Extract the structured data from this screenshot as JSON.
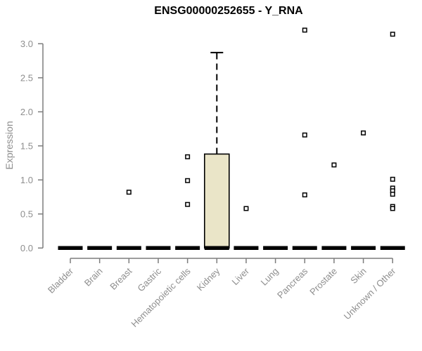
{
  "page": {
    "background": "#ffffff"
  },
  "style": {
    "box_fill": "#eae5c8",
    "box_stroke": "#000000",
    "median_color": "#000000",
    "axis_color": "#7d7d7d",
    "tick_label_color": "#8e8e8e",
    "title_color": "#000000",
    "outlier_marker": "open-square"
  },
  "chart_data": {
    "type": "boxplot",
    "title": "ENSG00000252655 - Y_RNA",
    "xlabel": "",
    "ylabel": "Expression",
    "ylim": [
      0,
      3.25
    ],
    "yticks": [
      0,
      0.5,
      1,
      1.5,
      2,
      2.5,
      3
    ],
    "grid": false,
    "legend": false,
    "categories": [
      "Bladder",
      "Brain",
      "Breast",
      "Gastric",
      "Hematopoietic cells",
      "Kidney",
      "Liver",
      "Lung",
      "Pancreas",
      "Prostate",
      "Skin",
      "Unknown / Other"
    ],
    "series": [
      {
        "category": "Bladder",
        "low": 0,
        "q1": 0,
        "median": 0,
        "q3": 0,
        "high": 0,
        "outliers": []
      },
      {
        "category": "Brain",
        "low": 0,
        "q1": 0,
        "median": 0,
        "q3": 0,
        "high": 0,
        "outliers": []
      },
      {
        "category": "Breast",
        "low": 0,
        "q1": 0,
        "median": 0,
        "q3": 0,
        "high": 0,
        "outliers": [
          0.82
        ]
      },
      {
        "category": "Gastric",
        "low": 0,
        "q1": 0,
        "median": 0,
        "q3": 0,
        "high": 0,
        "outliers": []
      },
      {
        "category": "Hematopoietic cells",
        "low": 0,
        "q1": 0,
        "median": 0,
        "q3": 0,
        "high": 0,
        "outliers": [
          1.34,
          0.99,
          0.64
        ]
      },
      {
        "category": "Kidney",
        "low": 0,
        "q1": 0,
        "median": 0,
        "q3": 1.38,
        "high": 2.87,
        "outliers": []
      },
      {
        "category": "Liver",
        "low": 0,
        "q1": 0,
        "median": 0,
        "q3": 0,
        "high": 0,
        "outliers": [
          0.58
        ]
      },
      {
        "category": "Lung",
        "low": 0,
        "q1": 0,
        "median": 0,
        "q3": 0,
        "high": 0,
        "outliers": []
      },
      {
        "category": "Pancreas",
        "low": 0,
        "q1": 0,
        "median": 0,
        "q3": 0,
        "high": 0,
        "outliers": [
          3.2,
          1.66,
          0.78
        ]
      },
      {
        "category": "Prostate",
        "low": 0,
        "q1": 0,
        "median": 0,
        "q3": 0,
        "high": 0,
        "outliers": [
          1.22
        ]
      },
      {
        "category": "Skin",
        "low": 0,
        "q1": 0,
        "median": 0,
        "q3": 0,
        "high": 0,
        "outliers": [
          1.69
        ]
      },
      {
        "category": "Unknown / Other",
        "low": 0,
        "q1": 0,
        "median": 0,
        "q3": 0,
        "high": 0,
        "outliers": [
          3.14,
          1.01,
          0.88,
          0.84,
          0.79,
          0.61,
          0.58
        ]
      }
    ]
  }
}
